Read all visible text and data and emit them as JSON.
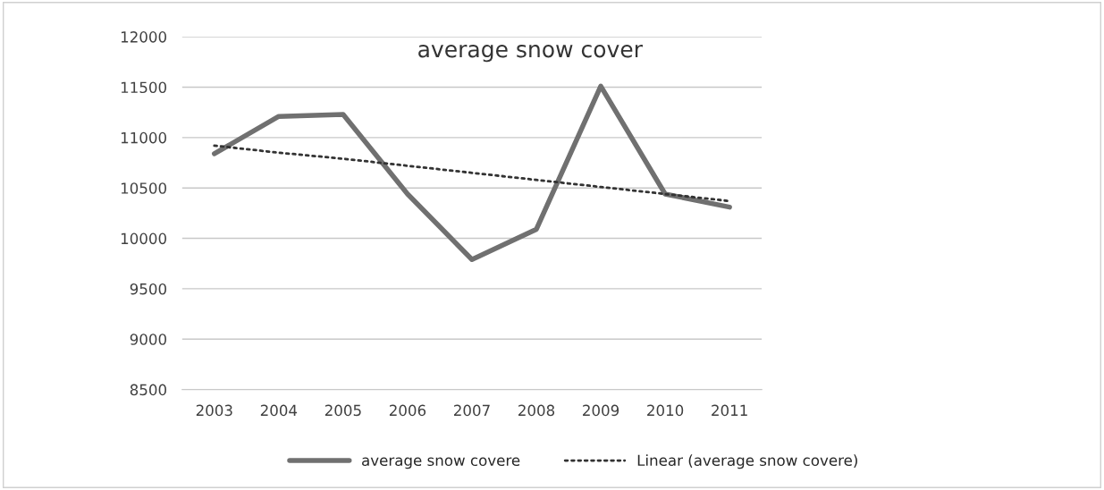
{
  "chart_data": {
    "type": "line",
    "title": "average snow cover",
    "categories": [
      "2003",
      "2004",
      "2005",
      "2006",
      "2007",
      "2008",
      "2009",
      "2010",
      "2011"
    ],
    "series": [
      {
        "name": "average snow covere",
        "color": "#707070",
        "values": [
          10840,
          11210,
          11230,
          10440,
          9790,
          10090,
          11510,
          10440,
          10310
        ]
      },
      {
        "name": "Linear (average snow covere)",
        "color": "#333333",
        "type": "line",
        "line_style": "dotted",
        "values": [
          10920,
          10850,
          10790,
          10720,
          10650,
          10580,
          10510,
          10440,
          10370
        ]
      }
    ],
    "ylim": [
      8500,
      12000
    ],
    "yticks": [
      8500,
      9000,
      9500,
      10000,
      10500,
      11000,
      11500,
      12000
    ],
    "grid": "y",
    "legend": "bottom",
    "marker": "none"
  }
}
